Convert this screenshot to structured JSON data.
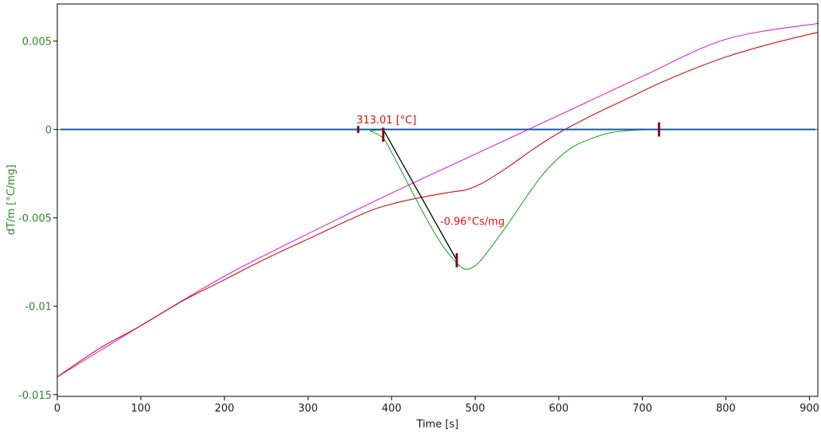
{
  "chart_data": {
    "type": "line",
    "xlabel": "Time [s]",
    "ylabel": "dT/m  [°C/mg]",
    "xlim": [
      0,
      910
    ],
    "ylim": [
      -0.0151,
      0.0071
    ],
    "x_ticks": [
      0,
      100,
      200,
      300,
      400,
      500,
      600,
      700,
      800,
      900
    ],
    "y_ticks": [
      0.005,
      0,
      -0.005,
      -0.01,
      -0.015
    ],
    "x_tick_labels": [
      "0",
      "100",
      "200",
      "300",
      "400",
      "500",
      "600",
      "700",
      "800",
      "900"
    ],
    "y_tick_labels": [
      "0.005",
      "0",
      "-0.005",
      "-0.01",
      "-0.015"
    ],
    "grid": false,
    "colors": {
      "green_signal": "#22aa22",
      "red_curve": "#cc1111",
      "magenta_line": "#dd22dd",
      "baseline": "#1a5a9a",
      "tangent": "#000000",
      "marker": "#7a1020",
      "annotation": "#e01010"
    },
    "series": [
      {
        "key": "magenta",
        "x": [
          0,
          100,
          200,
          300,
          400,
          500,
          600,
          700,
          800,
          910
        ],
        "y": [
          -0.014,
          -0.0111,
          -0.0083,
          -0.0059,
          -0.0036,
          -0.0014,
          0.0008,
          0.003,
          0.0051,
          0.006
        ]
      },
      {
        "key": "red",
        "x": [
          0,
          50,
          100,
          150,
          200,
          250,
          300,
          350,
          380,
          410,
          440,
          470,
          490,
          510,
          540,
          570,
          600,
          640,
          680,
          720,
          760,
          800,
          850,
          910
        ],
        "y": [
          -0.014,
          -0.0124,
          -0.0111,
          -0.0097,
          -0.0085,
          -0.0073,
          -0.0062,
          -0.0051,
          -0.0045,
          -0.0041,
          -0.0038,
          -0.00355,
          -0.0034,
          -0.003,
          -0.0021,
          -0.0011,
          -0.0002,
          0.0008,
          0.0017,
          0.0026,
          0.0034,
          0.0041,
          0.0048,
          0.0055
        ]
      },
      {
        "key": "green",
        "x": [
          0,
          360,
          375,
          390,
          400,
          420,
          440,
          460,
          475,
          485,
          490,
          495,
          505,
          520,
          540,
          560,
          580,
          600,
          620,
          640,
          660,
          680,
          700,
          720,
          910
        ],
        "y": [
          0,
          0,
          -0.0001,
          -0.0005,
          -0.0013,
          -0.0031,
          -0.0049,
          -0.0065,
          -0.0074,
          -0.00785,
          -0.0079,
          -0.00785,
          -0.0075,
          -0.0066,
          -0.0053,
          -0.0039,
          -0.0026,
          -0.0016,
          -0.0009,
          -0.0005,
          -0.0002,
          -8e-05,
          -2e-05,
          0,
          0
        ]
      }
    ],
    "baseline_y": 0,
    "tangent": {
      "x": [
        390,
        478
      ],
      "y": [
        0,
        -0.0074
      ]
    },
    "markers": [
      {
        "x": 360,
        "y": 0,
        "len": 0.0004
      },
      {
        "x": 390,
        "y": -0.0003,
        "len": 0.0008
      },
      {
        "x": 478,
        "y": -0.0074,
        "len": 0.0008
      },
      {
        "x": 720,
        "y": 0,
        "len": 0.0008
      }
    ],
    "annotations": [
      {
        "text": "313.01 [°C]",
        "x": 358,
        "y": 0.00035
      },
      {
        "text": "-0.96°Cs/mg",
        "x": 458,
        "y": -0.0054
      }
    ]
  }
}
